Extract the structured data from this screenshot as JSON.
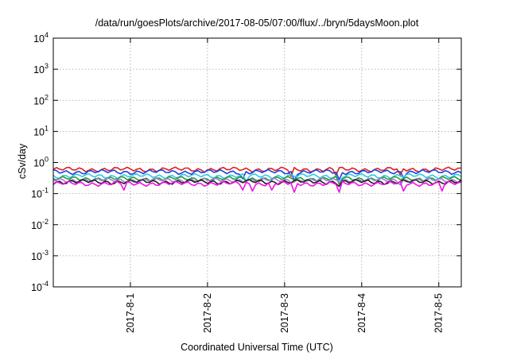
{
  "chart_data": {
    "type": "line",
    "title": "/data/run/goesPlots/archive/2017-08-05/07:00/flux/../bryn/5daysMoon.plot",
    "xlabel": "Coordinated Universal Time (UTC)",
    "ylabel": "cSv/day",
    "x_range": [
      "2017-07-31T00:00",
      "2017-08-05T07:00"
    ],
    "ylim": [
      0.0001,
      10000
    ],
    "yscale": "log",
    "grid": true,
    "legend": "none",
    "x_ticks": [
      {
        "value": "2017-08-01T00:00",
        "label": "2017-8-1"
      },
      {
        "value": "2017-08-02T00:00",
        "label": "2017-8-2"
      },
      {
        "value": "2017-08-03T00:00",
        "label": "2017-8-3"
      },
      {
        "value": "2017-08-04T00:00",
        "label": "2017-8-4"
      },
      {
        "value": "2017-08-05T00:00",
        "label": "2017-8-5"
      }
    ],
    "y_ticks": [
      {
        "value": 0.0001,
        "base": "10",
        "exp": "-4"
      },
      {
        "value": 0.001,
        "base": "10",
        "exp": "-3"
      },
      {
        "value": 0.01,
        "base": "10",
        "exp": "-2"
      },
      {
        "value": 0.1,
        "base": "10",
        "exp": "-1"
      },
      {
        "value": 1,
        "base": "10",
        "exp": "0"
      },
      {
        "value": 10,
        "base": "10",
        "exp": "1"
      },
      {
        "value": 100,
        "base": "10",
        "exp": "2"
      },
      {
        "value": 1000,
        "base": "10",
        "exp": "3"
      },
      {
        "value": 10000,
        "base": "10",
        "exp": "4"
      }
    ],
    "series": [
      {
        "color": "#e02020",
        "base_value": 0.6,
        "dips": [
          [
            "2017-08-03T02:00",
            0.36
          ],
          [
            "2017-08-03T16:00",
            0.38
          ],
          [
            "2017-08-04T12:00",
            0.4
          ]
        ]
      },
      {
        "color": "#1f3fe0",
        "base_value": 0.5,
        "dips": [
          [
            "2017-08-02T11:00",
            0.3
          ],
          [
            "2017-08-03T03:00",
            0.26
          ],
          [
            "2017-08-03T17:00",
            0.28
          ],
          [
            "2017-08-04T13:00",
            0.32
          ]
        ]
      },
      {
        "color": "#2ecbe0",
        "base_value": 0.37,
        "dips": [
          [
            "2017-08-02T12:00",
            0.24
          ],
          [
            "2017-08-03T17:00",
            0.22
          ]
        ]
      },
      {
        "color": "#2a9a3a",
        "base_value": 0.3,
        "dips": [
          [
            "2017-08-03T17:00",
            0.2
          ]
        ]
      },
      {
        "color": "#9b7fd0",
        "base_value": 0.27,
        "dips": [
          [
            "2017-08-04T12:00",
            0.19
          ]
        ]
      },
      {
        "color": "#222222",
        "base_value": 0.24,
        "dips": [
          [
            "2017-08-03T17:00",
            0.17
          ]
        ]
      },
      {
        "color": "#f012e8",
        "base_value": 0.21,
        "dips": [
          [
            "2017-07-31T22:00",
            0.13
          ],
          [
            "2017-08-02T11:00",
            0.13
          ],
          [
            "2017-08-02T14:00",
            0.12
          ],
          [
            "2017-08-02T20:00",
            0.13
          ],
          [
            "2017-08-03T03:00",
            0.11
          ],
          [
            "2017-08-03T17:00",
            0.11
          ],
          [
            "2017-08-04T13:00",
            0.12
          ],
          [
            "2017-08-05T01:00",
            0.12
          ]
        ]
      }
    ]
  }
}
